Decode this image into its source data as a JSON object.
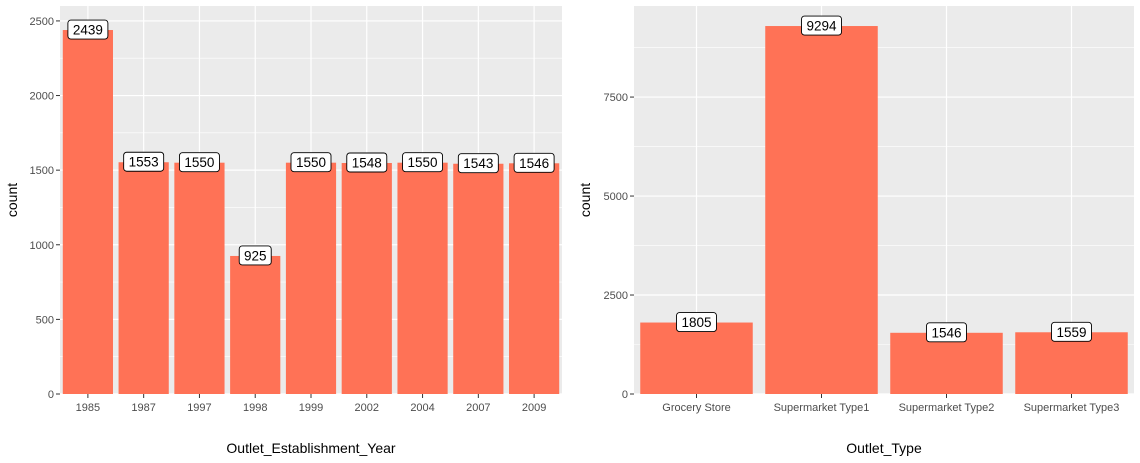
{
  "chart_data": [
    {
      "type": "bar",
      "categories": [
        "1985",
        "1987",
        "1997",
        "1998",
        "1999",
        "2002",
        "2004",
        "2007",
        "2009"
      ],
      "values": [
        2439,
        1553,
        1550,
        925,
        1550,
        1548,
        1550,
        1543,
        1546
      ],
      "data_labels": [
        "2439",
        "1553",
        "1550",
        "925",
        "1550",
        "1548",
        "1550",
        "1543",
        "1546"
      ],
      "xlabel": "Outlet_Establishment_Year",
      "ylabel": "count",
      "ylim": [
        0,
        2600
      ],
      "yticks": [
        0,
        500,
        1000,
        1500,
        2000,
        2500
      ],
      "ytick_labels": [
        "0",
        "500",
        "1000",
        "1500",
        "2000",
        "2500"
      ],
      "grid": true,
      "bar_color": "#ff7256",
      "panel_color": "#ebebeb"
    },
    {
      "type": "bar",
      "categories": [
        "Grocery Store",
        "Supermarket Type1",
        "Supermarket Type2",
        "Supermarket Type3"
      ],
      "values": [
        1805,
        9294,
        1546,
        1559
      ],
      "data_labels": [
        "1805",
        "9294",
        "1546",
        "1559"
      ],
      "xlabel": "Outlet_Type",
      "ylabel": "count",
      "ylim": [
        0,
        9800
      ],
      "yticks": [
        0,
        2500,
        5000,
        7500
      ],
      "ytick_labels": [
        "0",
        "2500",
        "5000",
        "7500"
      ],
      "grid": true,
      "bar_color": "#ff7256",
      "panel_color": "#ebebeb"
    }
  ]
}
